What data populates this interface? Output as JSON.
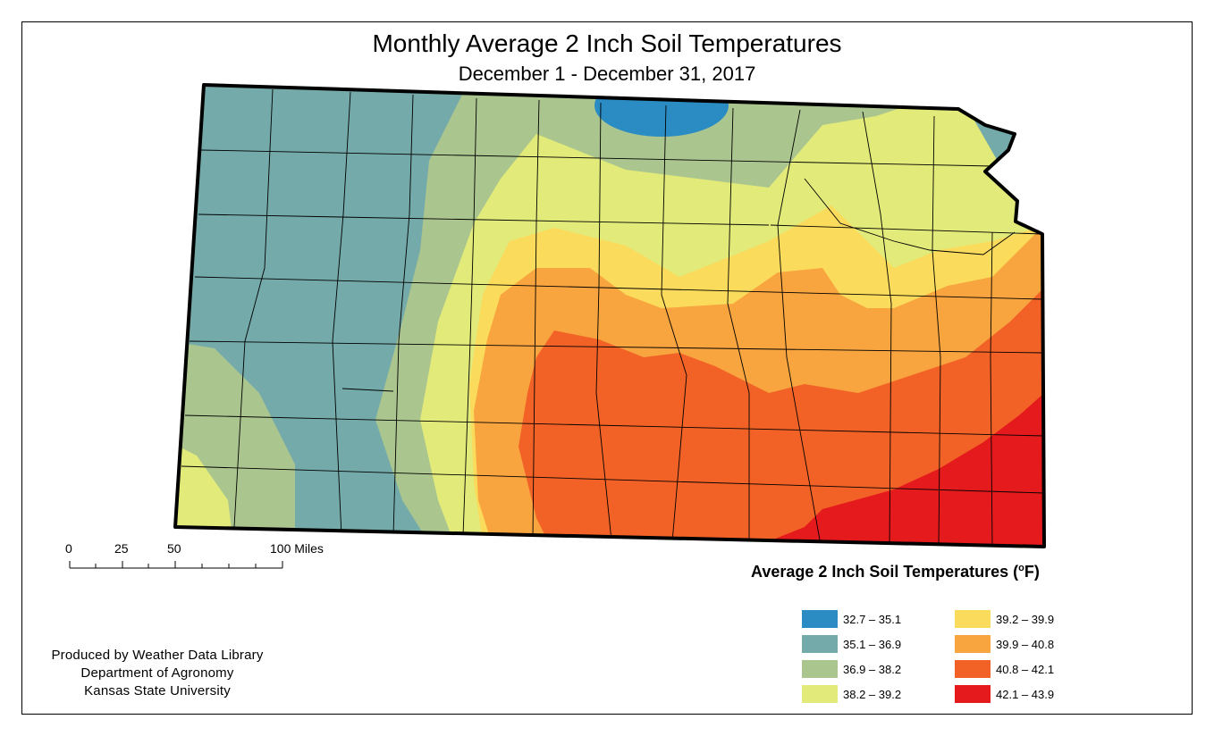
{
  "title": "Monthly Average 2 Inch Soil Temperatures",
  "subtitle": "December 1 - December 31, 2017",
  "scale_bar": {
    "labels": [
      "0",
      "25",
      "50",
      "100 Miles"
    ]
  },
  "legend": {
    "title_prefix": "Average 2 Inch Soil Temperatures (",
    "title_degree": "o",
    "title_suffix": "F)",
    "classes": [
      {
        "label": "32.7 – 35.1",
        "color": "#2b8cc4"
      },
      {
        "label": "35.1 – 36.9",
        "color": "#74aaa9"
      },
      {
        "label": "36.9 – 38.2",
        "color": "#abc58f"
      },
      {
        "label": "38.2 – 39.2",
        "color": "#e2ea7a"
      },
      {
        "label": "39.2 – 39.9",
        "color": "#fbdb5b"
      },
      {
        "label": "39.9 – 40.8",
        "color": "#f8a43f"
      },
      {
        "label": "40.8 – 42.1",
        "color": "#f26227"
      },
      {
        "label": "42.1 – 43.9",
        "color": "#e41a1c"
      }
    ]
  },
  "credits": {
    "line1": "Produced by Weather Data Library",
    "line2": "Department of Agronomy",
    "line3": "Kansas State University"
  }
}
